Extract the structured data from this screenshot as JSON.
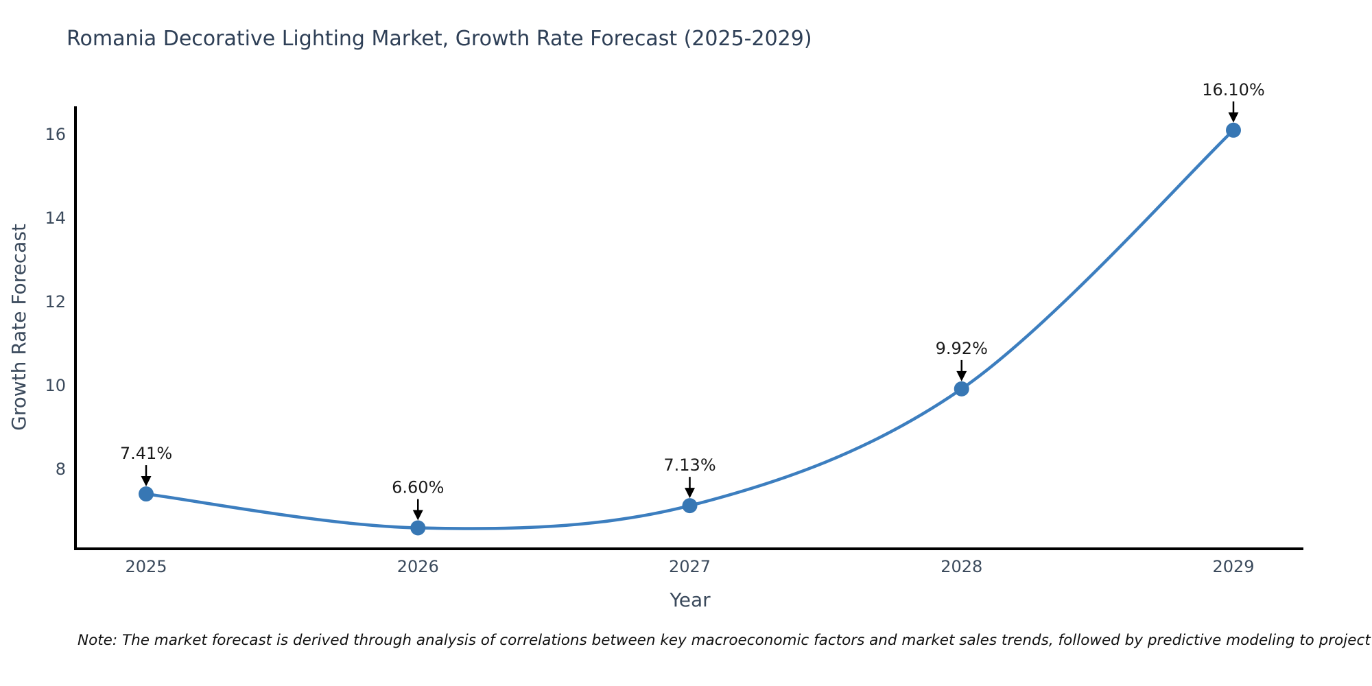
{
  "chart_data": {
    "type": "line",
    "title": "Romania Decorative Lighting Market, Growth Rate Forecast (2025-2029)",
    "xlabel": "Year",
    "ylabel": "Growth Rate Forecast",
    "x": [
      "2025",
      "2026",
      "2027",
      "2028",
      "2029"
    ],
    "series": [
      {
        "name": "Growth Rate Forecast",
        "values": [
          7.41,
          6.6,
          7.13,
          9.92,
          16.1
        ]
      }
    ],
    "point_labels": [
      "7.41%",
      "6.60%",
      "7.13%",
      "9.92%",
      "16.10%"
    ],
    "yticks": [
      8,
      10,
      12,
      14,
      16
    ],
    "ylim": [
      6.1,
      16.67
    ],
    "grid": false,
    "legend_position": "none",
    "line_color": "#3c7ebf",
    "marker_color": "#3777b4",
    "spine_color": "#000000",
    "annotation_arrow_color": "#000000",
    "note": "Note: The market forecast is derived through analysis of correlations between key macroeconomic factors and market sales trends, followed by predictive modeling to project future sales"
  }
}
